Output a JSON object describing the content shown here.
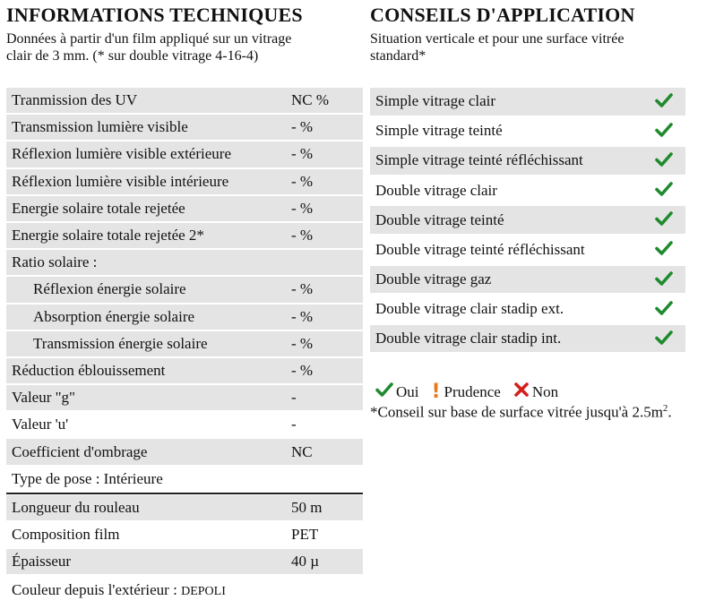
{
  "tech": {
    "title": "INFORMATIONS TECHNIQUES",
    "subtitle_line1": "Données à partir d'un film appliqué sur un vitrage",
    "subtitle_line2": "clair de 3 mm. (* sur double vitrage 4-16-4)",
    "rows": [
      {
        "label": "Tranmission des UV",
        "value": "NC %"
      },
      {
        "label": "Transmission lumière visible",
        "value": "- %"
      },
      {
        "label": "Réflexion lumière visible extérieure",
        "value": "- %"
      },
      {
        "label": "Réflexion lumière visible intérieure",
        "value": "- %"
      },
      {
        "label": "Energie solaire totale rejetée",
        "value": "- %"
      },
      {
        "label": "Energie solaire totale rejetée 2*",
        "value": "- %"
      },
      {
        "label": "Ratio solaire :",
        "value": ""
      },
      {
        "label": "Réflexion énergie solaire",
        "value": "- %"
      },
      {
        "label": "Absorption énergie solaire",
        "value": "- %"
      },
      {
        "label": "Transmission énergie solaire",
        "value": "- %"
      },
      {
        "label": "Réduction éblouissement",
        "value": "- %"
      },
      {
        "label": "Valeur \"g\"",
        "value": "-"
      },
      {
        "label": "Valeur 'u'",
        "value": "-"
      },
      {
        "label": "Coefficient d'ombrage",
        "value": "NC"
      },
      {
        "label": "Type de pose : Intérieure",
        "value": ""
      },
      {
        "label": "Longueur du rouleau",
        "value": "50 m"
      },
      {
        "label": "Composition film",
        "value": "PET"
      },
      {
        "label": "Épaisseur",
        "value": "40 µ"
      }
    ],
    "color_label": "Couleur depuis l'extérieur : ",
    "color_value": "DEPOLI"
  },
  "app": {
    "title": "CONSEILS D'APPLICATION",
    "subtitle_line1": "Situation verticale et pour une surface vitrée",
    "subtitle_line2": "standard*",
    "rows": [
      {
        "label": "Simple vitrage clair",
        "icon": "check-icon"
      },
      {
        "label": "Simple vitrage teinté",
        "icon": "check-icon"
      },
      {
        "label": "Simple vitrage teinté réfléchissant",
        "icon": "check-icon"
      },
      {
        "label": "Double vitrage clair",
        "icon": "check-icon"
      },
      {
        "label": "Double vitrage teinté",
        "icon": "check-icon"
      },
      {
        "label": "Double vitrage teinté réfléchissant",
        "icon": "check-icon"
      },
      {
        "label": "Double vitrage gaz",
        "icon": "check-icon"
      },
      {
        "label": "Double vitrage clair stadip ext.",
        "icon": "check-icon"
      },
      {
        "label": "Double vitrage clair stadip int.",
        "icon": "check-icon"
      }
    ],
    "legend": {
      "yes": "Oui",
      "caution_mark": "!",
      "caution": "Prudence",
      "no": "Non"
    },
    "note_text": "*Conseil sur base de surface vitrée jusqu'à 2.5m",
    "note_sup": "2",
    "note_end": "."
  },
  "colors": {
    "check": "#1f8a2e",
    "cross": "#d4201c",
    "caution": "#e87a1c",
    "row_shade": "#e4e4e4"
  }
}
